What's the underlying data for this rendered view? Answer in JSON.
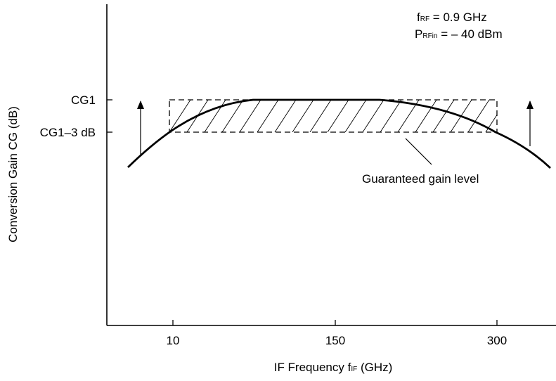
{
  "conditions": {
    "frf": {
      "sym": "f",
      "sub": "RF",
      "rest": " = 0.9 GHz"
    },
    "prf": {
      "sym": "P",
      "sub": "RFin",
      "rest": " = – 40 dBm"
    }
  },
  "y_axis": {
    "label": "Conversion Gain CG  (dB)",
    "levels": [
      {
        "label": "CG1"
      },
      {
        "label": "CG1–3 dB"
      }
    ]
  },
  "x_axis": {
    "label_main": "IF Frequency f",
    "label_sub": "IF",
    "label_unit": "  (GHz)",
    "ticks": [
      "10",
      "150",
      "300"
    ]
  },
  "annotation": "Guaranteed gain level",
  "colors": {
    "line": "#000000",
    "background": "#ffffff"
  }
}
